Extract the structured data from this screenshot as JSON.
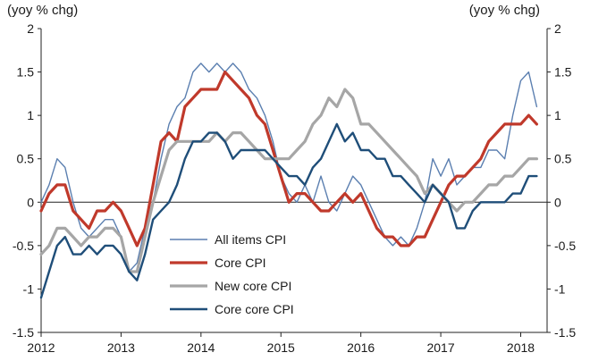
{
  "chart_data": {
    "type": "line",
    "title": "",
    "y_unit_left": "(yoy % chg)",
    "y_unit_right": "(yoy % chg)",
    "ylim": [
      -1.5,
      2
    ],
    "y_ticks": [
      "2",
      "1.5",
      "1",
      "0.5",
      "0",
      "-0.5",
      "-1",
      "-1.5"
    ],
    "y_tick_values": [
      2,
      1.5,
      1,
      0.5,
      0,
      -0.5,
      -1,
      -1.5
    ],
    "x_ticks": [
      "2012",
      "2013",
      "2014",
      "2015",
      "2016",
      "2017",
      "2018"
    ],
    "x_tick_values": [
      2012,
      2013,
      2014,
      2015,
      2016,
      2017,
      2018
    ],
    "xlim": [
      2012,
      2018.33
    ],
    "grid": false,
    "legend_position": "center-left",
    "series": [
      {
        "name": "All items CPI",
        "color": "#5b7fb0",
        "width": 1.4,
        "points": [
          [
            2012.0,
            0.0
          ],
          [
            2012.1,
            0.2
          ],
          [
            2012.2,
            0.5
          ],
          [
            2012.3,
            0.4
          ],
          [
            2012.4,
            0.0
          ],
          [
            2012.5,
            -0.3
          ],
          [
            2012.6,
            -0.4
          ],
          [
            2012.7,
            -0.3
          ],
          [
            2012.8,
            -0.2
          ],
          [
            2012.9,
            -0.2
          ],
          [
            2013.0,
            -0.4
          ],
          [
            2013.1,
            -0.8
          ],
          [
            2013.2,
            -0.7
          ],
          [
            2013.3,
            -0.3
          ],
          [
            2013.4,
            0.0
          ],
          [
            2013.5,
            0.5
          ],
          [
            2013.6,
            0.9
          ],
          [
            2013.7,
            1.1
          ],
          [
            2013.8,
            1.2
          ],
          [
            2013.9,
            1.5
          ],
          [
            2014.0,
            1.6
          ],
          [
            2014.1,
            1.5
          ],
          [
            2014.2,
            1.6
          ],
          [
            2014.3,
            1.5
          ],
          [
            2014.4,
            1.6
          ],
          [
            2014.5,
            1.5
          ],
          [
            2014.6,
            1.3
          ],
          [
            2014.7,
            1.2
          ],
          [
            2014.8,
            1.0
          ],
          [
            2014.9,
            0.7
          ],
          [
            2015.0,
            0.3
          ],
          [
            2015.1,
            0.1
          ],
          [
            2015.2,
            0.0
          ],
          [
            2015.3,
            0.2
          ],
          [
            2015.4,
            0.0
          ],
          [
            2015.5,
            0.3
          ],
          [
            2015.6,
            0.0
          ],
          [
            2015.7,
            -0.1
          ],
          [
            2015.8,
            0.1
          ],
          [
            2015.9,
            0.3
          ],
          [
            2016.0,
            0.2
          ],
          [
            2016.1,
            0.0
          ],
          [
            2016.2,
            -0.2
          ],
          [
            2016.3,
            -0.4
          ],
          [
            2016.4,
            -0.5
          ],
          [
            2016.5,
            -0.4
          ],
          [
            2016.6,
            -0.5
          ],
          [
            2016.7,
            -0.3
          ],
          [
            2016.8,
            0.0
          ],
          [
            2016.9,
            0.5
          ],
          [
            2017.0,
            0.3
          ],
          [
            2017.1,
            0.5
          ],
          [
            2017.2,
            0.2
          ],
          [
            2017.3,
            0.3
          ],
          [
            2017.4,
            0.4
          ],
          [
            2017.5,
            0.4
          ],
          [
            2017.6,
            0.6
          ],
          [
            2017.7,
            0.6
          ],
          [
            2017.8,
            0.5
          ],
          [
            2017.9,
            1.0
          ],
          [
            2018.0,
            1.4
          ],
          [
            2018.1,
            1.5
          ],
          [
            2018.2,
            1.1
          ]
        ]
      },
      {
        "name": "Core CPI",
        "color": "#c0392b",
        "width": 3.2,
        "points": [
          [
            2012.0,
            -0.1
          ],
          [
            2012.1,
            0.1
          ],
          [
            2012.2,
            0.2
          ],
          [
            2012.3,
            0.2
          ],
          [
            2012.4,
            -0.1
          ],
          [
            2012.5,
            -0.2
          ],
          [
            2012.6,
            -0.3
          ],
          [
            2012.7,
            -0.1
          ],
          [
            2012.8,
            -0.1
          ],
          [
            2012.9,
            0.0
          ],
          [
            2013.0,
            -0.1
          ],
          [
            2013.1,
            -0.3
          ],
          [
            2013.2,
            -0.5
          ],
          [
            2013.3,
            -0.3
          ],
          [
            2013.4,
            0.2
          ],
          [
            2013.5,
            0.7
          ],
          [
            2013.6,
            0.8
          ],
          [
            2013.7,
            0.7
          ],
          [
            2013.8,
            1.1
          ],
          [
            2013.9,
            1.2
          ],
          [
            2014.0,
            1.3
          ],
          [
            2014.1,
            1.3
          ],
          [
            2014.2,
            1.3
          ],
          [
            2014.3,
            1.5
          ],
          [
            2014.4,
            1.4
          ],
          [
            2014.5,
            1.3
          ],
          [
            2014.6,
            1.2
          ],
          [
            2014.7,
            1.0
          ],
          [
            2014.8,
            0.9
          ],
          [
            2014.9,
            0.6
          ],
          [
            2015.0,
            0.3
          ],
          [
            2015.1,
            0.0
          ],
          [
            2015.2,
            0.1
          ],
          [
            2015.3,
            0.1
          ],
          [
            2015.4,
            0.0
          ],
          [
            2015.5,
            -0.1
          ],
          [
            2015.6,
            -0.1
          ],
          [
            2015.7,
            0.0
          ],
          [
            2015.8,
            0.1
          ],
          [
            2015.9,
            0.0
          ],
          [
            2016.0,
            0.1
          ],
          [
            2016.1,
            -0.1
          ],
          [
            2016.2,
            -0.3
          ],
          [
            2016.3,
            -0.4
          ],
          [
            2016.4,
            -0.4
          ],
          [
            2016.5,
            -0.5
          ],
          [
            2016.6,
            -0.5
          ],
          [
            2016.7,
            -0.4
          ],
          [
            2016.8,
            -0.4
          ],
          [
            2016.9,
            -0.2
          ],
          [
            2017.0,
            0.0
          ],
          [
            2017.1,
            0.2
          ],
          [
            2017.2,
            0.3
          ],
          [
            2017.3,
            0.3
          ],
          [
            2017.4,
            0.4
          ],
          [
            2017.5,
            0.5
          ],
          [
            2017.6,
            0.7
          ],
          [
            2017.7,
            0.8
          ],
          [
            2017.8,
            0.9
          ],
          [
            2017.9,
            0.9
          ],
          [
            2018.0,
            0.9
          ],
          [
            2018.1,
            1.0
          ],
          [
            2018.2,
            0.9
          ]
        ]
      },
      {
        "name": "New core CPI",
        "color": "#a6a6a6",
        "width": 3.2,
        "points": [
          [
            2012.0,
            -0.6
          ],
          [
            2012.1,
            -0.5
          ],
          [
            2012.2,
            -0.3
          ],
          [
            2012.3,
            -0.3
          ],
          [
            2012.4,
            -0.4
          ],
          [
            2012.5,
            -0.5
          ],
          [
            2012.6,
            -0.4
          ],
          [
            2012.7,
            -0.4
          ],
          [
            2012.8,
            -0.3
          ],
          [
            2012.9,
            -0.3
          ],
          [
            2013.0,
            -0.4
          ],
          [
            2013.1,
            -0.8
          ],
          [
            2013.2,
            -0.8
          ],
          [
            2013.3,
            -0.4
          ],
          [
            2013.4,
            0.0
          ],
          [
            2013.5,
            0.3
          ],
          [
            2013.6,
            0.6
          ],
          [
            2013.7,
            0.7
          ],
          [
            2013.8,
            0.7
          ],
          [
            2013.9,
            0.7
          ],
          [
            2014.0,
            0.7
          ],
          [
            2014.1,
            0.7
          ],
          [
            2014.2,
            0.8
          ],
          [
            2014.3,
            0.7
          ],
          [
            2014.4,
            0.8
          ],
          [
            2014.5,
            0.8
          ],
          [
            2014.6,
            0.7
          ],
          [
            2014.7,
            0.6
          ],
          [
            2014.8,
            0.5
          ],
          [
            2014.9,
            0.5
          ],
          [
            2015.0,
            0.5
          ],
          [
            2015.1,
            0.5
          ],
          [
            2015.2,
            0.6
          ],
          [
            2015.3,
            0.7
          ],
          [
            2015.4,
            0.9
          ],
          [
            2015.5,
            1.0
          ],
          [
            2015.6,
            1.2
          ],
          [
            2015.7,
            1.1
          ],
          [
            2015.8,
            1.3
          ],
          [
            2015.9,
            1.2
          ],
          [
            2016.0,
            0.9
          ],
          [
            2016.1,
            0.9
          ],
          [
            2016.2,
            0.8
          ],
          [
            2016.3,
            0.7
          ],
          [
            2016.4,
            0.6
          ],
          [
            2016.5,
            0.5
          ],
          [
            2016.6,
            0.4
          ],
          [
            2016.7,
            0.3
          ],
          [
            2016.8,
            0.1
          ],
          [
            2016.9,
            0.2
          ],
          [
            2017.0,
            0.1
          ],
          [
            2017.1,
            0.0
          ],
          [
            2017.2,
            -0.1
          ],
          [
            2017.3,
            0.0
          ],
          [
            2017.4,
            0.0
          ],
          [
            2017.5,
            0.1
          ],
          [
            2017.6,
            0.2
          ],
          [
            2017.7,
            0.2
          ],
          [
            2017.8,
            0.3
          ],
          [
            2017.9,
            0.3
          ],
          [
            2018.0,
            0.4
          ],
          [
            2018.1,
            0.5
          ],
          [
            2018.2,
            0.5
          ]
        ]
      },
      {
        "name": "Core core CPI",
        "color": "#1f4e79",
        "width": 2.4,
        "points": [
          [
            2012.0,
            -1.1
          ],
          [
            2012.1,
            -0.8
          ],
          [
            2012.2,
            -0.5
          ],
          [
            2012.3,
            -0.4
          ],
          [
            2012.4,
            -0.6
          ],
          [
            2012.5,
            -0.6
          ],
          [
            2012.6,
            -0.5
          ],
          [
            2012.7,
            -0.6
          ],
          [
            2012.8,
            -0.5
          ],
          [
            2012.9,
            -0.5
          ],
          [
            2013.0,
            -0.6
          ],
          [
            2013.1,
            -0.8
          ],
          [
            2013.2,
            -0.9
          ],
          [
            2013.3,
            -0.6
          ],
          [
            2013.4,
            -0.2
          ],
          [
            2013.5,
            -0.1
          ],
          [
            2013.6,
            0.0
          ],
          [
            2013.7,
            0.2
          ],
          [
            2013.8,
            0.5
          ],
          [
            2013.9,
            0.7
          ],
          [
            2014.0,
            0.7
          ],
          [
            2014.1,
            0.8
          ],
          [
            2014.2,
            0.8
          ],
          [
            2014.3,
            0.7
          ],
          [
            2014.4,
            0.5
          ],
          [
            2014.5,
            0.6
          ],
          [
            2014.6,
            0.6
          ],
          [
            2014.7,
            0.6
          ],
          [
            2014.8,
            0.6
          ],
          [
            2014.9,
            0.5
          ],
          [
            2015.0,
            0.4
          ],
          [
            2015.1,
            0.3
          ],
          [
            2015.2,
            0.3
          ],
          [
            2015.3,
            0.2
          ],
          [
            2015.4,
            0.4
          ],
          [
            2015.5,
            0.5
          ],
          [
            2015.6,
            0.7
          ],
          [
            2015.7,
            0.9
          ],
          [
            2015.8,
            0.7
          ],
          [
            2015.9,
            0.8
          ],
          [
            2016.0,
            0.6
          ],
          [
            2016.1,
            0.6
          ],
          [
            2016.2,
            0.5
          ],
          [
            2016.3,
            0.5
          ],
          [
            2016.4,
            0.3
          ],
          [
            2016.5,
            0.3
          ],
          [
            2016.6,
            0.2
          ],
          [
            2016.7,
            0.1
          ],
          [
            2016.8,
            0.0
          ],
          [
            2016.9,
            0.2
          ],
          [
            2017.0,
            0.1
          ],
          [
            2017.1,
            0.0
          ],
          [
            2017.2,
            -0.3
          ],
          [
            2017.3,
            -0.3
          ],
          [
            2017.4,
            -0.1
          ],
          [
            2017.5,
            0.0
          ],
          [
            2017.6,
            0.0
          ],
          [
            2017.7,
            0.0
          ],
          [
            2017.8,
            0.0
          ],
          [
            2017.9,
            0.1
          ],
          [
            2018.0,
            0.1
          ],
          [
            2018.1,
            0.3
          ],
          [
            2018.2,
            0.3
          ]
        ]
      }
    ]
  }
}
